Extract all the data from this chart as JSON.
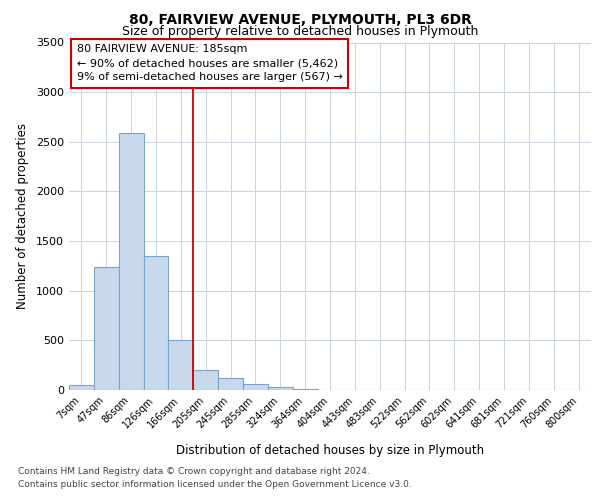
{
  "title1": "80, FAIRVIEW AVENUE, PLYMOUTH, PL3 6DR",
  "title2": "Size of property relative to detached houses in Plymouth",
  "xlabel": "Distribution of detached houses by size in Plymouth",
  "ylabel": "Number of detached properties",
  "bins": [
    "7sqm",
    "47sqm",
    "86sqm",
    "126sqm",
    "166sqm",
    "205sqm",
    "245sqm",
    "285sqm",
    "324sqm",
    "364sqm",
    "404sqm",
    "443sqm",
    "483sqm",
    "522sqm",
    "562sqm",
    "602sqm",
    "641sqm",
    "681sqm",
    "721sqm",
    "760sqm",
    "800sqm"
  ],
  "values": [
    50,
    1240,
    2590,
    1350,
    500,
    200,
    120,
    60,
    35,
    10,
    5,
    2,
    0,
    0,
    0,
    0,
    0,
    0,
    0,
    0,
    0
  ],
  "bar_color": "#c8d8ed",
  "bar_edge_color": "#7ba3c8",
  "annotation_line1": "80 FAIRVIEW AVENUE: 185sqm",
  "annotation_line2": "← 90% of detached houses are smaller (5,462)",
  "annotation_line3": "9% of semi-detached houses are larger (567) →",
  "ylim": [
    0,
    3500
  ],
  "yticks": [
    0,
    500,
    1000,
    1500,
    2000,
    2500,
    3000,
    3500
  ],
  "footer1": "Contains HM Land Registry data © Crown copyright and database right 2024.",
  "footer2": "Contains public sector information licensed under the Open Government Licence v3.0.",
  "bg_color": "#ffffff",
  "plot_bg_color": "#ffffff",
  "grid_color": "#c8d4e0"
}
